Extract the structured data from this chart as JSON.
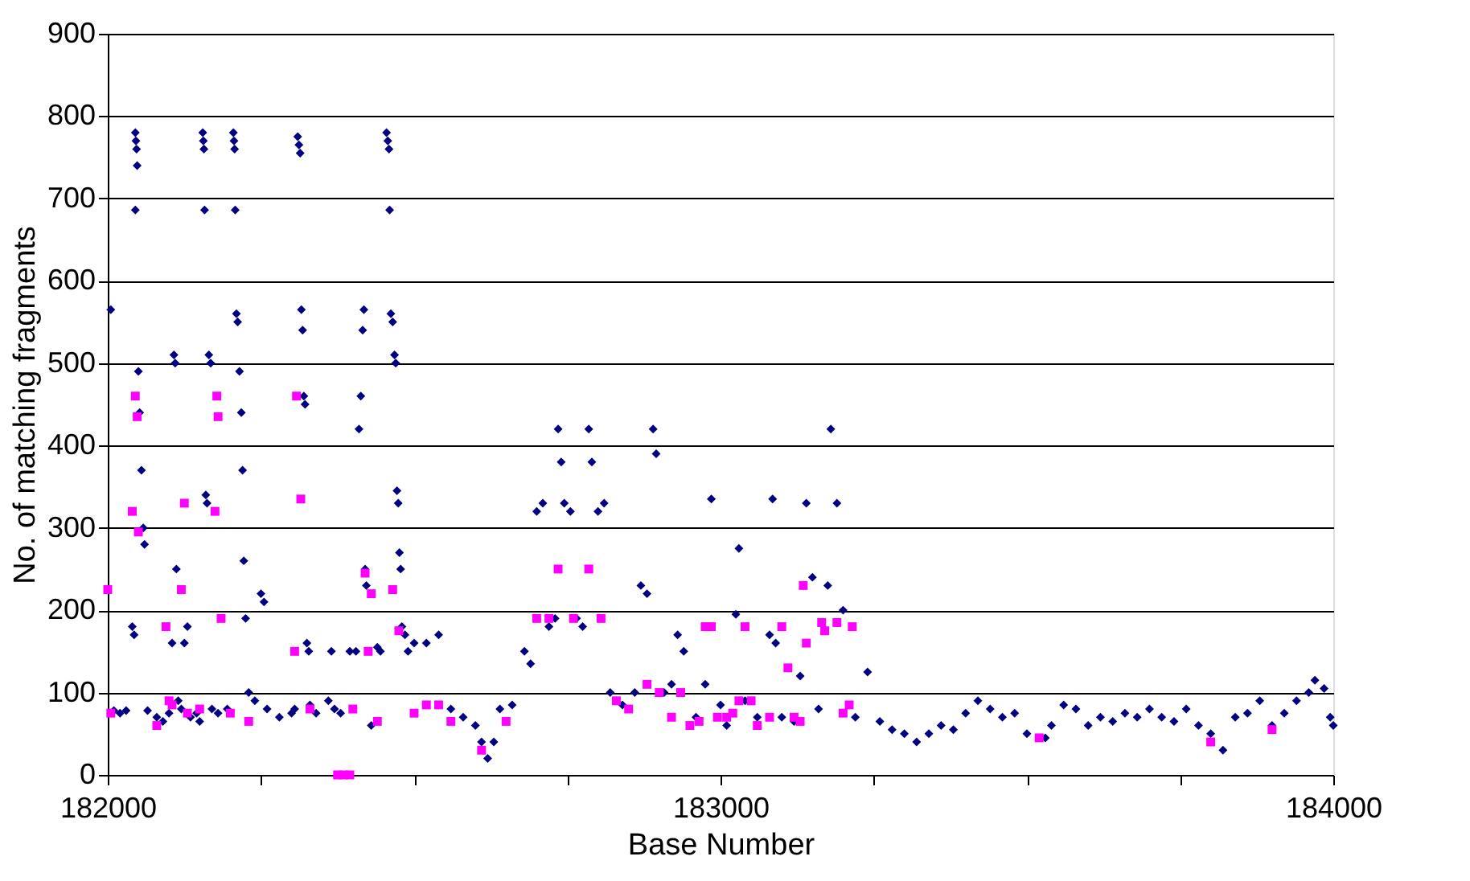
{
  "chart_data": {
    "type": "scatter",
    "xlabel": "Base Number",
    "ylabel": "No. of matching fragments",
    "xlim": [
      182000,
      184000
    ],
    "xticks": [
      182000,
      {
        "value": 182250,
        "label": null
      },
      {
        "value": 182500,
        "label": null
      },
      {
        "value": 182750,
        "label": null
      },
      183000,
      {
        "value": 183250,
        "label": null
      },
      {
        "value": 183500,
        "label": null
      },
      {
        "value": 183750,
        "label": null
      },
      184000
    ],
    "ylim": [
      0,
      900
    ],
    "yticks": [
      0,
      100,
      200,
      300,
      400,
      500,
      600,
      700,
      800,
      900
    ],
    "grid": "y",
    "legend": false,
    "series": [
      {
        "color": "#000080",
        "marker": "diamond",
        "x": [
          182005,
          182010,
          182020,
          182030,
          182040,
          182043,
          182045,
          182046,
          182047,
          182048,
          182045,
          182050,
          182052,
          182055,
          182058,
          182060,
          182065,
          182080,
          182090,
          182100,
          182105,
          182108,
          182110,
          182112,
          182115,
          182120,
          182125,
          182130,
          182135,
          182145,
          182150,
          182155,
          182156,
          182157,
          182158,
          182160,
          182162,
          182165,
          182168,
          182170,
          182180,
          182195,
          182205,
          182206,
          182207,
          182208,
          182210,
          182212,
          182215,
          182218,
          182220,
          182222,
          182225,
          182230,
          182240,
          182250,
          182255,
          182260,
          182280,
          182300,
          182305,
          182310,
          182312,
          182314,
          182316,
          182318,
          182320,
          182322,
          182325,
          182328,
          182330,
          182340,
          182360,
          182365,
          182370,
          182380,
          182395,
          182405,
          182410,
          182413,
          182416,
          182418,
          182420,
          182422,
          182430,
          182440,
          182445,
          182455,
          182457,
          182459,
          182460,
          182462,
          182465,
          182468,
          182470,
          182472,
          182474,
          182476,
          182478,
          182480,
          182485,
          182490,
          182500,
          182520,
          182540,
          182560,
          182580,
          182600,
          182610,
          182620,
          182630,
          182640,
          182660,
          182680,
          182690,
          182700,
          182710,
          182720,
          182730,
          182735,
          182740,
          182745,
          182755,
          182765,
          182775,
          182785,
          182790,
          182800,
          182810,
          182820,
          182840,
          182860,
          182870,
          182880,
          182890,
          182895,
          182908,
          182920,
          182930,
          182940,
          182960,
          182975,
          182985,
          183000,
          183010,
          183025,
          183030,
          183040,
          183060,
          183080,
          183085,
          183090,
          183100,
          183120,
          183130,
          183140,
          183150,
          183160,
          183175,
          183180,
          183190,
          183200,
          183220,
          183240,
          183260,
          183280,
          183300,
          183320,
          183340,
          183360,
          183380,
          183400,
          183420,
          183440,
          183460,
          183480,
          183500,
          183530,
          183540,
          183560,
          183580,
          183600,
          183620,
          183640,
          183660,
          183680,
          183700,
          183720,
          183740,
          183760,
          183780,
          183800,
          183820,
          183840,
          183860,
          183880,
          183900,
          183920,
          183940,
          183960,
          183970,
          183985,
          183995,
          184000
        ],
        "values": [
          565,
          78,
          75,
          78,
          180,
          170,
          780,
          770,
          760,
          740,
          686,
          490,
          440,
          370,
          300,
          280,
          78,
          70,
          65,
          75,
          160,
          510,
          500,
          250,
          90,
          80,
          160,
          180,
          70,
          75,
          65,
          780,
          770,
          760,
          686,
          340,
          330,
          510,
          500,
          80,
          75,
          80,
          780,
          770,
          760,
          686,
          560,
          550,
          490,
          440,
          370,
          260,
          190,
          100,
          90,
          220,
          210,
          80,
          70,
          75,
          80,
          775,
          765,
          755,
          565,
          540,
          460,
          450,
          160,
          150,
          85,
          75,
          90,
          150,
          80,
          75,
          150,
          150,
          420,
          460,
          540,
          565,
          250,
          230,
          60,
          155,
          150,
          780,
          770,
          760,
          686,
          560,
          550,
          510,
          500,
          345,
          330,
          270,
          250,
          180,
          170,
          150,
          160,
          160,
          170,
          80,
          70,
          60,
          40,
          20,
          40,
          80,
          85,
          150,
          135,
          320,
          330,
          180,
          190,
          420,
          380,
          330,
          320,
          190,
          180,
          420,
          380,
          320,
          330,
          100,
          85,
          100,
          230,
          220,
          420,
          390,
          100,
          110,
          170,
          150,
          70,
          110,
          335,
          85,
          60,
          195,
          275,
          90,
          70,
          170,
          335,
          160,
          70,
          65,
          120,
          330,
          240,
          80,
          230,
          420,
          330,
          200,
          70,
          125,
          65,
          55,
          50,
          40,
          50,
          60,
          55,
          75,
          90,
          80,
          70,
          75,
          50,
          45,
          60,
          85,
          80,
          60,
          70,
          65,
          75,
          70,
          80,
          70,
          65,
          80,
          60,
          50,
          30,
          70,
          75,
          90,
          60,
          75,
          90,
          100,
          115,
          105,
          70,
          60
        ]
      },
      {
        "color": "#ff00ff",
        "marker": "square",
        "x": [
          182000,
          182005,
          182040,
          182045,
          182048,
          182050,
          182080,
          182095,
          182100,
          182105,
          182120,
          182125,
          182130,
          182150,
          182175,
          182178,
          182180,
          182185,
          182200,
          182230,
          182305,
          182308,
          182315,
          182330,
          182375,
          182385,
          182395,
          182400,
          182420,
          182425,
          182430,
          182440,
          182465,
          182475,
          182500,
          182520,
          182540,
          182560,
          182610,
          182650,
          182700,
          182720,
          182735,
          182760,
          182785,
          182805,
          182830,
          182850,
          182880,
          182900,
          182920,
          182935,
          182950,
          182965,
          182975,
          182985,
          182995,
          183010,
          183020,
          183030,
          183040,
          183050,
          183060,
          183080,
          183100,
          183110,
          183120,
          183130,
          183135,
          183140,
          183165,
          183170,
          183190,
          183200,
          183210,
          183215,
          183520,
          183800,
          183900
        ],
        "values": [
          225,
          75,
          320,
          460,
          435,
          295,
          60,
          180,
          90,
          85,
          225,
          330,
          75,
          80,
          320,
          460,
          435,
          190,
          75,
          65,
          150,
          460,
          335,
          80,
          0,
          0,
          0,
          80,
          245,
          150,
          220,
          65,
          225,
          175,
          75,
          85,
          85,
          65,
          30,
          65,
          190,
          190,
          250,
          190,
          250,
          190,
          90,
          80,
          110,
          100,
          70,
          100,
          60,
          65,
          180,
          180,
          70,
          70,
          75,
          90,
          180,
          90,
          60,
          70,
          180,
          130,
          70,
          65,
          230,
          160,
          185,
          175,
          185,
          75,
          85,
          180,
          45,
          40,
          55
        ]
      }
    ]
  }
}
